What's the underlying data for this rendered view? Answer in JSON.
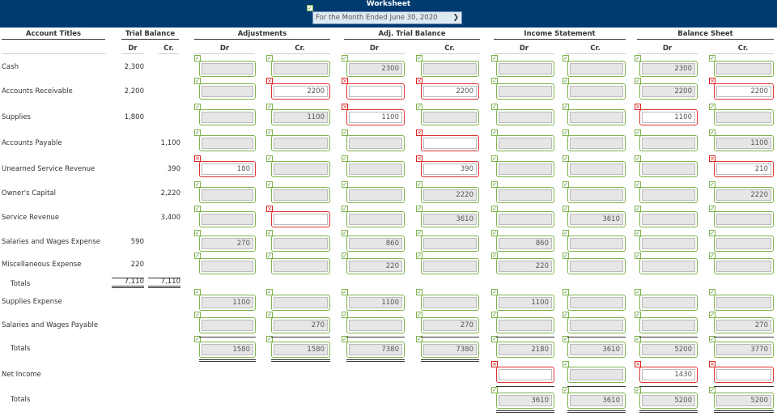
{
  "header": {
    "title": "Worksheet",
    "period": "For the Month Ended June 30, 2020"
  },
  "columns": {
    "account_titles": "Account Titles",
    "groups": [
      "Trial Balance",
      "Adjustments",
      "Adj. Trial Balance",
      "Income Statement",
      "Balance Sheet"
    ],
    "dr": "Dr",
    "cr": "Cr."
  },
  "rows": [
    {
      "label": "Cash",
      "tb_dr": "2,300",
      "tb_cr": "",
      "entries": [
        [
          "ok",
          ""
        ],
        [
          "ok",
          ""
        ],
        [
          "ok",
          "2300"
        ],
        [
          "ok",
          ""
        ],
        [
          "ok",
          ""
        ],
        [
          "ok",
          ""
        ],
        [
          "ok",
          "2300"
        ],
        [
          "ok",
          ""
        ]
      ]
    },
    {
      "label": "Accounts Receivable",
      "tb_dr": "2,200",
      "tb_cr": "",
      "entries": [
        [
          "ok",
          ""
        ],
        [
          "bad",
          "2200"
        ],
        [
          "bad",
          ""
        ],
        [
          "bad",
          "2200"
        ],
        [
          "ok",
          ""
        ],
        [
          "ok",
          ""
        ],
        [
          "ok",
          "2200"
        ],
        [
          "bad",
          "2200"
        ]
      ]
    },
    {
      "label": "Supplies",
      "tb_dr": "1,800",
      "tb_cr": "",
      "entries": [
        [
          "ok",
          ""
        ],
        [
          "ok",
          "1100"
        ],
        [
          "bad",
          "1100"
        ],
        [
          "ok",
          ""
        ],
        [
          "ok",
          ""
        ],
        [
          "ok",
          ""
        ],
        [
          "bad",
          "1100"
        ],
        [
          "ok",
          ""
        ]
      ]
    },
    {
      "label": "Accounts Payable",
      "tb_dr": "",
      "tb_cr": "1,100",
      "entries": [
        [
          "ok",
          ""
        ],
        [
          "ok",
          ""
        ],
        [
          "ok",
          ""
        ],
        [
          "bad",
          ""
        ],
        [
          "ok",
          ""
        ],
        [
          "ok",
          ""
        ],
        [
          "ok",
          ""
        ],
        [
          "ok",
          "1100"
        ]
      ]
    },
    {
      "label": "Unearned Service Revenue",
      "tb_dr": "",
      "tb_cr": "390",
      "entries": [
        [
          "bad",
          "180"
        ],
        [
          "ok",
          ""
        ],
        [
          "ok",
          ""
        ],
        [
          "bad",
          "390"
        ],
        [
          "ok",
          ""
        ],
        [
          "ok",
          ""
        ],
        [
          "ok",
          ""
        ],
        [
          "bad",
          "210"
        ]
      ]
    },
    {
      "label": "Owner's Capital",
      "tb_dr": "",
      "tb_cr": "2,220",
      "entries": [
        [
          "ok",
          ""
        ],
        [
          "ok",
          ""
        ],
        [
          "ok",
          ""
        ],
        [
          "ok",
          "2220"
        ],
        [
          "ok",
          ""
        ],
        [
          "ok",
          ""
        ],
        [
          "ok",
          ""
        ],
        [
          "ok",
          "2220"
        ]
      ]
    },
    {
      "label": "Service Revenue",
      "tb_dr": "",
      "tb_cr": "3,400",
      "entries": [
        [
          "ok",
          ""
        ],
        [
          "bad",
          ""
        ],
        [
          "ok",
          ""
        ],
        [
          "ok",
          "3610"
        ],
        [
          "ok",
          ""
        ],
        [
          "ok",
          "3610"
        ],
        [
          "ok",
          ""
        ],
        [
          "ok",
          ""
        ]
      ]
    },
    {
      "label": "Salaries and Wages Expense",
      "tb_dr": "590",
      "tb_cr": "",
      "entries": [
        [
          "ok",
          "270"
        ],
        [
          "ok",
          ""
        ],
        [
          "ok",
          "860"
        ],
        [
          "ok",
          ""
        ],
        [
          "ok",
          "860"
        ],
        [
          "ok",
          ""
        ],
        [
          "ok",
          ""
        ],
        [
          "ok",
          ""
        ]
      ]
    },
    {
      "label": "Miscellaneous Expense",
      "tb_dr": "220",
      "tb_cr": "",
      "entries": [
        [
          "ok",
          ""
        ],
        [
          "ok",
          ""
        ],
        [
          "ok",
          "220"
        ],
        [
          "ok",
          ""
        ],
        [
          "ok",
          "220"
        ],
        [
          "ok",
          ""
        ],
        [
          "ok",
          ""
        ],
        [
          "ok",
          ""
        ]
      ]
    }
  ],
  "tb_totals": {
    "label": "Totals",
    "dr": "7,110",
    "cr": "7,110"
  },
  "extra_rows": [
    {
      "label": "Supplies Expense",
      "entries": [
        [
          "ok",
          "1100"
        ],
        [
          "ok",
          ""
        ],
        [
          "ok",
          "1100"
        ],
        [
          "ok",
          ""
        ],
        [
          "ok",
          "1100"
        ],
        [
          "ok",
          ""
        ],
        [
          "ok",
          ""
        ],
        [
          "ok",
          ""
        ]
      ]
    },
    {
      "label": "Salaries and Wages Payable",
      "entries": [
        [
          "ok",
          ""
        ],
        [
          "ok",
          "270"
        ],
        [
          "ok",
          ""
        ],
        [
          "ok",
          "270"
        ],
        [
          "ok",
          ""
        ],
        [
          "ok",
          ""
        ],
        [
          "ok",
          ""
        ],
        [
          "ok",
          "270"
        ]
      ]
    },
    {
      "label": "Totals",
      "entries": [
        [
          "ok",
          "1580"
        ],
        [
          "ok",
          "1580"
        ],
        [
          "ok",
          "7380"
        ],
        [
          "ok",
          "7380"
        ],
        [
          "ok",
          "2180"
        ],
        [
          "ok",
          "3610"
        ],
        [
          "ok",
          "5200"
        ],
        [
          "ok",
          "3770"
        ]
      ]
    }
  ],
  "net_income": {
    "label": "Net Income",
    "entries": [
      null,
      null,
      null,
      null,
      [
        "bad",
        ""
      ],
      [
        "ok",
        ""
      ],
      [
        "bad",
        "1430"
      ],
      [
        "bad",
        ""
      ]
    ]
  },
  "final_totals": {
    "label": "Totals",
    "entries": [
      null,
      null,
      null,
      null,
      [
        "ok",
        "3610"
      ],
      [
        "ok",
        "3610"
      ],
      [
        "ok",
        "5200"
      ],
      [
        "ok",
        "5200"
      ]
    ]
  },
  "status_marks": {
    "ok": "✓",
    "bad": "×"
  }
}
